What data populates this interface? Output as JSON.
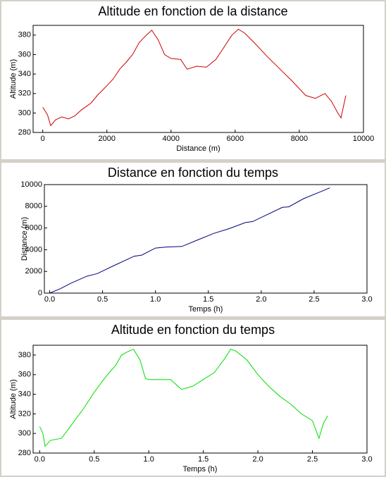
{
  "chart_data": [
    {
      "type": "line",
      "title": "Altitude en fonction de la distance",
      "xlabel": "Distance (m)",
      "ylabel": "Altitude (m)",
      "color": "#cc0000",
      "x": [
        0,
        150,
        250,
        400,
        600,
        800,
        1000,
        1200,
        1500,
        1700,
        2000,
        2200,
        2400,
        2600,
        2800,
        3000,
        3200,
        3400,
        3600,
        3800,
        4000,
        4300,
        4500,
        4800,
        5100,
        5400,
        5700,
        5900,
        6100,
        6300,
        6600,
        7000,
        7400,
        7800,
        8200,
        8500,
        8800,
        9000,
        9200,
        9300,
        9450
      ],
      "values": [
        306,
        298,
        287,
        293,
        296,
        294,
        297,
        303,
        310,
        318,
        328,
        335,
        345,
        352,
        360,
        372,
        379,
        385,
        375,
        360,
        356,
        355,
        345,
        348,
        347,
        355,
        370,
        380,
        386,
        382,
        372,
        358,
        345,
        332,
        318,
        315,
        320,
        312,
        300,
        295,
        318
      ],
      "xlim": [
        -300,
        10000
      ],
      "ylim": [
        280,
        390
      ],
      "xticks": [
        0,
        2000,
        4000,
        6000,
        8000,
        10000
      ],
      "yticks": [
        280,
        300,
        320,
        340,
        360,
        380
      ]
    },
    {
      "type": "line",
      "title": "Distance en fonction du temps",
      "xlabel": "Temps (h)",
      "ylabel": "Distance (m)",
      "color": "#000080",
      "x": [
        0,
        0.1,
        0.2,
        0.35,
        0.45,
        0.6,
        0.8,
        0.87,
        1.0,
        1.1,
        1.25,
        1.4,
        1.55,
        1.7,
        1.85,
        1.92,
        2.05,
        2.2,
        2.26,
        2.4,
        2.55,
        2.65
      ],
      "values": [
        0,
        400,
        900,
        1550,
        1800,
        2500,
        3400,
        3500,
        4150,
        4250,
        4300,
        4900,
        5500,
        5950,
        6500,
        6600,
        7200,
        7900,
        7950,
        8700,
        9300,
        9700
      ],
      "xlim": [
        -0.05,
        3.0
      ],
      "ylim": [
        0,
        10000
      ],
      "xticks": [
        {
          "value": 0,
          "label": "0.0"
        },
        0.5,
        {
          "value": 1,
          "label": "1.0"
        },
        1.5,
        {
          "value": 2,
          "label": "2.0"
        },
        2.5,
        {
          "value": 3,
          "label": "3.0"
        }
      ],
      "yticks": [
        0,
        2000,
        4000,
        6000,
        8000,
        10000
      ]
    },
    {
      "type": "line",
      "title": "Altitude en fonction du temps",
      "xlabel": "Temps (h)",
      "ylabel": "Altitude (m)",
      "color": "#00dd00",
      "x": [
        0,
        0.03,
        0.05,
        0.1,
        0.2,
        0.3,
        0.4,
        0.5,
        0.6,
        0.7,
        0.75,
        0.8,
        0.86,
        0.92,
        0.97,
        1.0,
        1.2,
        1.3,
        1.4,
        1.5,
        1.6,
        1.7,
        1.75,
        1.8,
        1.9,
        2.0,
        2.1,
        2.2,
        2.3,
        2.4,
        2.5,
        2.56,
        2.6,
        2.64
      ],
      "values": [
        307,
        300,
        287,
        293,
        295,
        310,
        325,
        342,
        357,
        370,
        380,
        383,
        386,
        375,
        356,
        355,
        355,
        345,
        348,
        355,
        362,
        377,
        386,
        384,
        375,
        360,
        348,
        338,
        330,
        320,
        313,
        295,
        310,
        318
      ],
      "xlim": [
        -0.06,
        3.0
      ],
      "ylim": [
        280,
        390
      ],
      "xticks": [
        {
          "value": 0,
          "label": "0.0"
        },
        0.5,
        {
          "value": 1,
          "label": "1.0"
        },
        1.5,
        {
          "value": 2,
          "label": "2.0"
        },
        2.5,
        {
          "value": 3,
          "label": "3.0"
        }
      ],
      "yticks": [
        280,
        300,
        320,
        340,
        360,
        380
      ]
    }
  ]
}
